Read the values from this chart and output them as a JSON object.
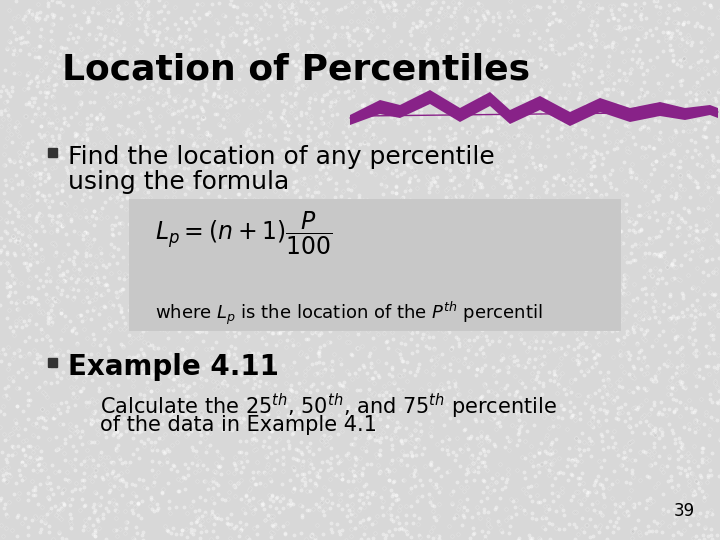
{
  "title": "Location of Percentiles",
  "bg_color": "#d8d8d8",
  "title_color": "#000000",
  "title_fontsize": 26,
  "bullet1_text_line1": "Find the location of any percentile",
  "bullet1_text_line2": "using the formula",
  "bullet1_fontsize": 18,
  "formula_box_color": "#c8c8c8",
  "formula_main": "$L_p = (n+1)\\dfrac{P}{100}$",
  "formula_sub": "where $L_p$ is the location of the $P^{th}$ percentil",
  "bullet2_title": "Example 4.11",
  "bullet2_fontsize": 20,
  "bullet2_body_line1": "Calculate the 25$^{th}$, 50$^{th}$, and 75$^{th}$ percentile",
  "bullet2_body_line2": "of the data in Example 4.1",
  "bullet2_body_fontsize": 15,
  "page_num": "39",
  "purple_color": "#882288",
  "bullet_color": "#333333",
  "formula_fontsize": 17,
  "formula_sub_fontsize": 13
}
